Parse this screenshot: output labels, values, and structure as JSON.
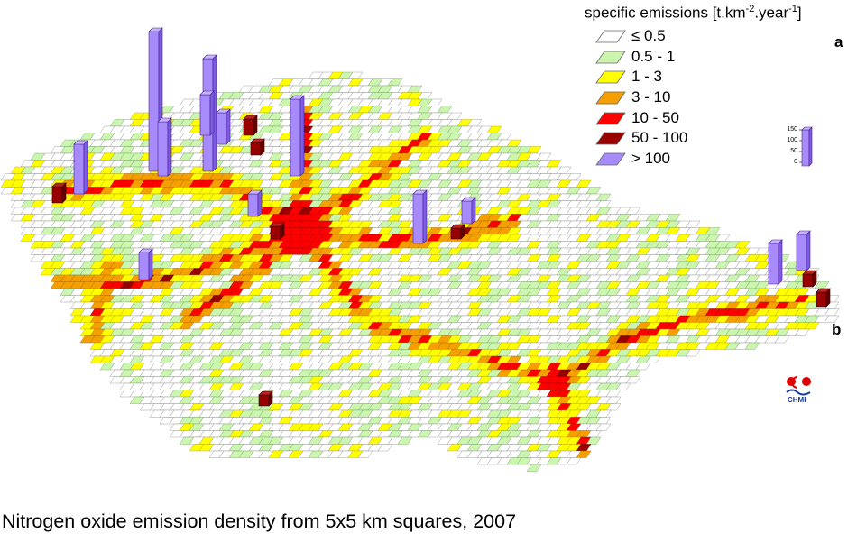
{
  "legend": {
    "title_prefix": "specific emissions [t.km",
    "title_exp1": "-2",
    "title_mid": ".year",
    "title_exp2": "-1",
    "title_suffix": "]",
    "items": [
      {
        "label": "≤ 0.5",
        "color": "#ffffff"
      },
      {
        "label": "0.5 - 1",
        "color": "#ccf5b0"
      },
      {
        "label": "1 - 3",
        "color": "#ffff00"
      },
      {
        "label": "3 - 10",
        "color": "#f5a000"
      },
      {
        "label": "10 - 50",
        "color": "#ff0000"
      },
      {
        "label": "50 - 100",
        "color": "#990000"
      },
      {
        "label": "> 100",
        "color": "#a78bfa"
      }
    ]
  },
  "panels": {
    "a": "a",
    "b": "b"
  },
  "scale": {
    "ticks": [
      "150",
      "100",
      "50",
      "0"
    ]
  },
  "logo": {
    "text": "CHMI"
  },
  "caption": "Nitrogen oxide emission density from 5x5 km squares, 2007"
}
